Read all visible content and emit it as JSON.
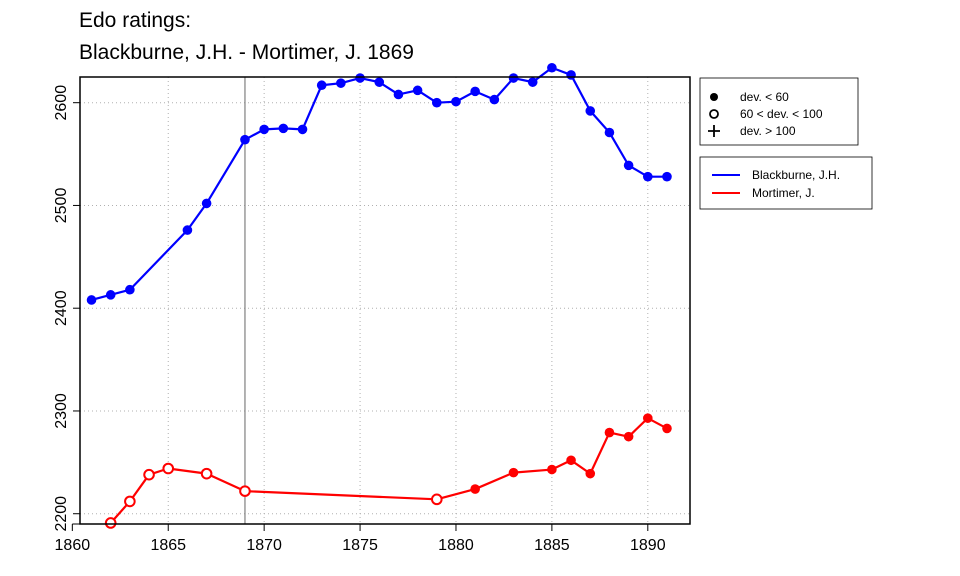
{
  "title_line1": "Edo ratings:",
  "title_line2": "Blackburne, J.H. - Mortimer, J. 1869",
  "legend_dev": [
    {
      "symbol": "filled-circle",
      "label": "dev. < 60"
    },
    {
      "symbol": "open-circle",
      "label": "60 < dev. < 100"
    },
    {
      "symbol": "plus",
      "label": "dev. > 100"
    }
  ],
  "chart_data": {
    "type": "line",
    "xlim": [
      1860.4,
      1892.2
    ],
    "ylim": [
      2190,
      2625
    ],
    "x_ticks": [
      1860,
      1865,
      1870,
      1875,
      1880,
      1885,
      1890
    ],
    "y_ticks": [
      2200,
      2300,
      2400,
      2500,
      2600
    ],
    "grid": true,
    "legend": "right",
    "vline": 1869,
    "series": [
      {
        "name": "Blackburne, J.H.",
        "color": "#0000ff",
        "x": [
          1861,
          1862,
          1863,
          1866,
          1867,
          1869,
          1870,
          1871,
          1872,
          1873,
          1874,
          1875,
          1876,
          1877,
          1878,
          1879,
          1880,
          1881,
          1882,
          1883,
          1884,
          1885,
          1886,
          1887,
          1888,
          1889,
          1890,
          1891
        ],
        "y": [
          2408,
          2413,
          2418,
          2476,
          2502,
          2564,
          2574,
          2575,
          2574,
          2617,
          2619,
          2624,
          2620,
          2608,
          2612,
          2600,
          2601,
          2611,
          2603,
          2624,
          2620,
          2634,
          2627,
          2592,
          2571,
          2539,
          2528,
          2528
        ],
        "markers": [
          "filled",
          "filled",
          "filled",
          "filled",
          "filled",
          "filled",
          "filled",
          "filled",
          "filled",
          "filled",
          "filled",
          "filled",
          "filled",
          "filled",
          "filled",
          "filled",
          "filled",
          "filled",
          "filled",
          "filled",
          "filled",
          "filled",
          "filled",
          "filled",
          "filled",
          "filled",
          "filled",
          "filled"
        ]
      },
      {
        "name": "Mortimer, J.",
        "color": "#ff0000",
        "x": [
          1862,
          1863,
          1864,
          1865,
          1867,
          1869,
          1879,
          1881,
          1883,
          1885,
          1886,
          1887,
          1888,
          1889,
          1890,
          1891
        ],
        "y": [
          2191,
          2212,
          2238,
          2244,
          2239,
          2222,
          2214,
          2224,
          2240,
          2243,
          2252,
          2239,
          2279,
          2275,
          2293,
          2283
        ],
        "markers": [
          "open",
          "open",
          "open",
          "open",
          "open",
          "open",
          "open",
          "filled",
          "filled",
          "filled",
          "filled",
          "filled",
          "filled",
          "filled",
          "filled",
          "filled"
        ]
      }
    ]
  }
}
